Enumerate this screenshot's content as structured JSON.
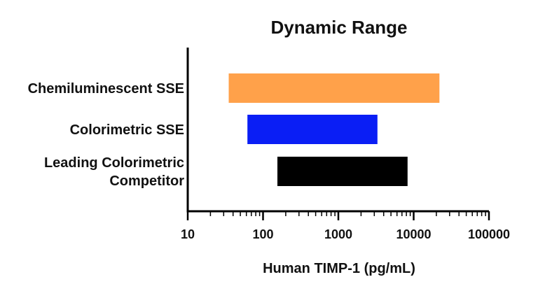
{
  "chart_data": {
    "type": "bar",
    "orientation": "horizontal",
    "title": "Dynamic Range",
    "xlabel": "Human TIMP-1 (pg/mL)",
    "ylabel": "",
    "x_scale": "log",
    "xlim": [
      10,
      100000
    ],
    "x_ticks": [
      10,
      100,
      1000,
      10000,
      100000
    ],
    "x_tick_labels": [
      "10",
      "100",
      "1000",
      "10000",
      "100000"
    ],
    "grid": false,
    "legend": "none",
    "series": [
      {
        "category": [
          "Chemiluminescent SSE"
        ],
        "range": [
          35,
          22000
        ],
        "color": "#FFA14A"
      },
      {
        "category": [
          "Colorimetric SSE"
        ],
        "range": [
          62,
          3300
        ],
        "color": "#0A1EF5"
      },
      {
        "category": [
          "Leading Colorimetric",
          "Competitor"
        ],
        "range": [
          155,
          8300
        ],
        "color": "#000000"
      }
    ]
  }
}
